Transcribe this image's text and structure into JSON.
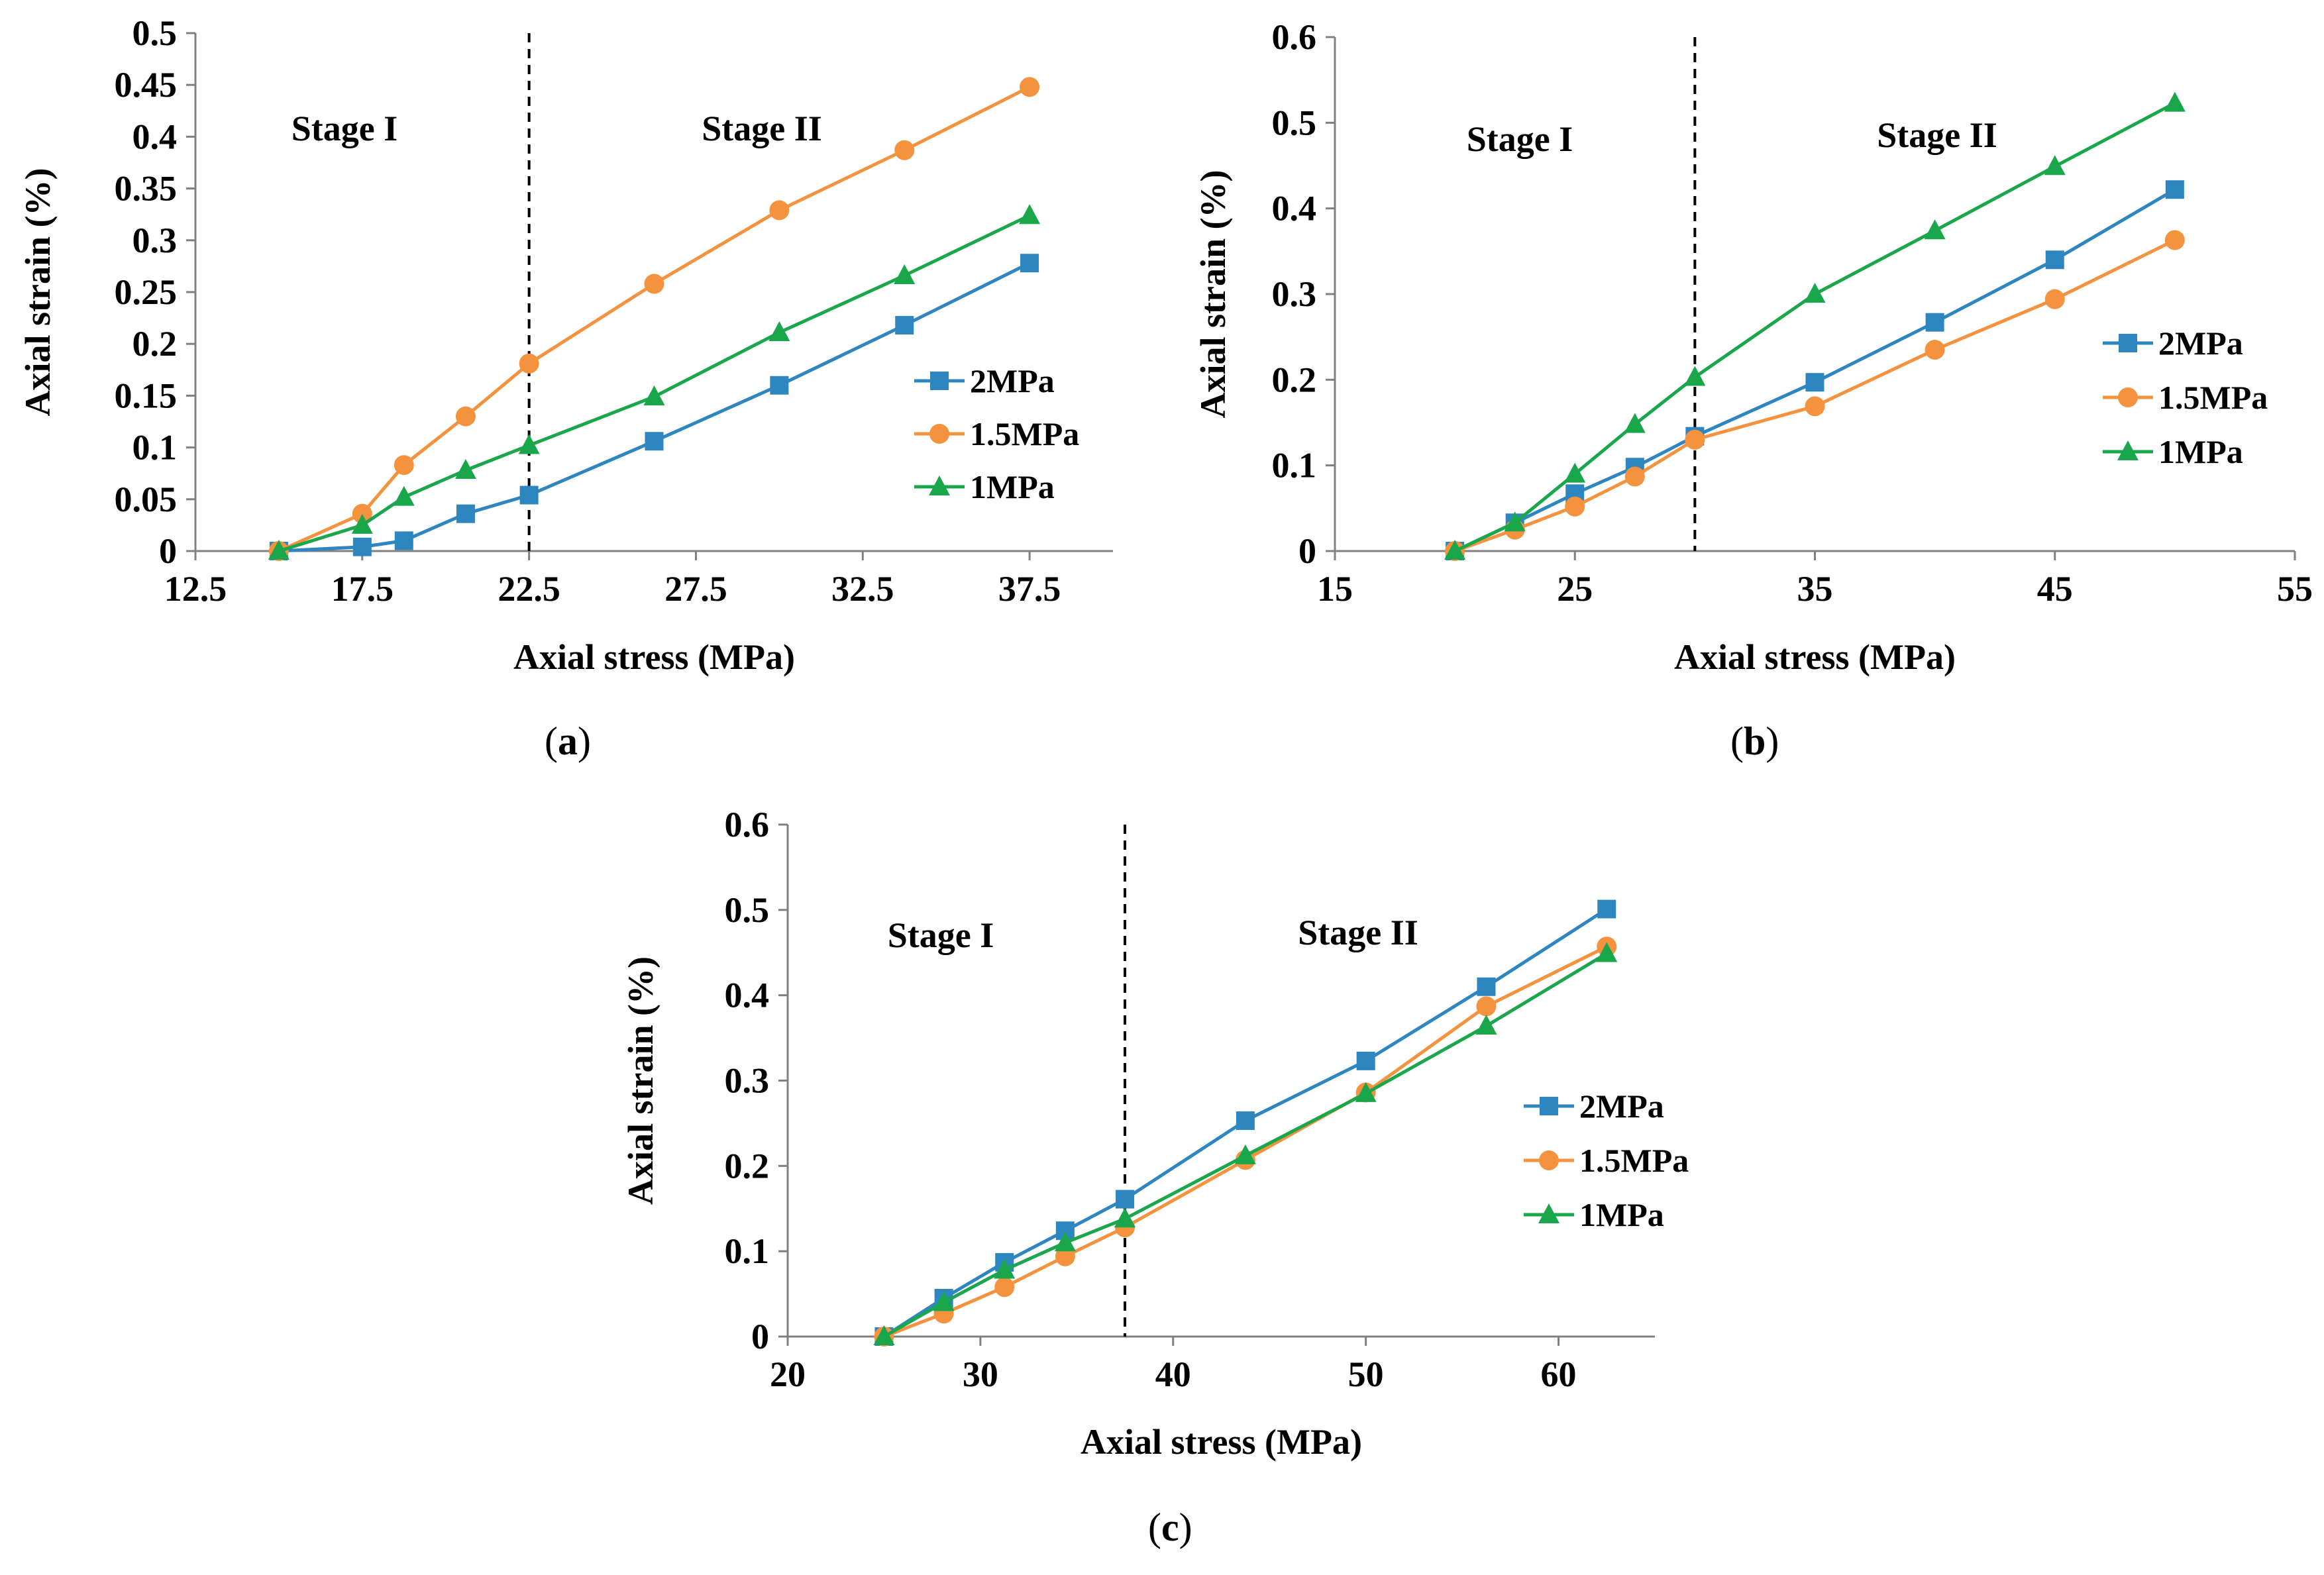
{
  "chart_data": [
    {
      "id": "a",
      "type": "line",
      "caption_letter": "a",
      "xlabel": "Axial stress (MPa)",
      "ylabel": "Axial strain (%)",
      "xlim": [
        12.5,
        40
      ],
      "ylim": [
        0,
        0.5
      ],
      "xticks": [
        12.5,
        17.5,
        22.5,
        27.5,
        32.5,
        37.5
      ],
      "xtick_labels": [
        "12.5",
        "17.5",
        "22.5",
        "27.5",
        "32.5",
        "37.5"
      ],
      "yticks": [
        0,
        0.05,
        0.1,
        0.15,
        0.2,
        0.25,
        0.3,
        0.35,
        0.4,
        0.45,
        0.5
      ],
      "ytick_labels": [
        "0",
        "0.05",
        "0.1",
        "0.15",
        "0.2",
        "0.25",
        "0.3",
        "0.35",
        "0.4",
        "0.45",
        "0.5"
      ],
      "divider_x": 22.5,
      "stage_labels": [
        "Stage I",
        "Stage II"
      ],
      "series": [
        {
          "name": "2MPa",
          "color": "#2e86c1",
          "marker": "square",
          "x": [
            15,
            17.5,
            18.75,
            20.6,
            22.5,
            26.25,
            30,
            33.75,
            37.5
          ],
          "y": [
            0,
            0.004,
            0.01,
            0.036,
            0.054,
            0.106,
            0.16,
            0.218,
            0.278
          ]
        },
        {
          "name": "1.5MPa",
          "color": "#f5923e",
          "marker": "circle",
          "x": [
            15,
            17.5,
            18.75,
            20.6,
            22.5,
            26.25,
            30,
            33.75,
            37.5
          ],
          "y": [
            0,
            0.036,
            0.083,
            0.13,
            0.181,
            0.258,
            0.329,
            0.387,
            0.448
          ]
        },
        {
          "name": "1MPa",
          "color": "#1aa64a",
          "marker": "triangle",
          "x": [
            15,
            17.5,
            18.75,
            20.6,
            22.5,
            26.25,
            30,
            33.75,
            37.5
          ],
          "y": [
            0,
            0.025,
            0.052,
            0.078,
            0.102,
            0.149,
            0.211,
            0.266,
            0.324
          ]
        }
      ]
    },
    {
      "id": "b",
      "type": "line",
      "caption_letter": "b",
      "xlabel": "Axial stress (MPa)",
      "ylabel": "Axial strain (%)",
      "xlim": [
        15,
        55
      ],
      "ylim": [
        0,
        0.6
      ],
      "xticks": [
        15,
        25,
        35,
        45,
        55
      ],
      "xtick_labels": [
        "15",
        "25",
        "35",
        "45",
        "55"
      ],
      "yticks": [
        0,
        0.1,
        0.2,
        0.3,
        0.4,
        0.5,
        0.6
      ],
      "ytick_labels": [
        "0",
        "0.1",
        "0.2",
        "0.3",
        "0.4",
        "0.5",
        "0.6"
      ],
      "divider_x": 30,
      "stage_labels": [
        "Stage I",
        "Stage II"
      ],
      "series": [
        {
          "name": "2MPa",
          "color": "#2e86c1",
          "marker": "square",
          "x": [
            20,
            22.5,
            25,
            27.5,
            30,
            35,
            40,
            45,
            50
          ],
          "y": [
            0,
            0.033,
            0.067,
            0.098,
            0.134,
            0.197,
            0.267,
            0.34,
            0.422
          ]
        },
        {
          "name": "1.5MPa",
          "color": "#f5923e",
          "marker": "circle",
          "x": [
            20,
            22.5,
            25,
            27.5,
            30,
            35,
            40,
            45,
            50
          ],
          "y": [
            0,
            0.025,
            0.052,
            0.087,
            0.13,
            0.169,
            0.235,
            0.294,
            0.363
          ]
        },
        {
          "name": "1MPa",
          "color": "#1aa64a",
          "marker": "triangle",
          "x": [
            20,
            22.5,
            25,
            27.5,
            30,
            35,
            40,
            45,
            50
          ],
          "y": [
            0,
            0.033,
            0.09,
            0.148,
            0.203,
            0.3,
            0.374,
            0.449,
            0.523
          ]
        }
      ]
    },
    {
      "id": "c",
      "type": "line",
      "caption_letter": "c",
      "xlabel": "Axial stress (MPa)",
      "ylabel": "Axial strain (%)",
      "xlim": [
        20,
        65
      ],
      "ylim": [
        0,
        0.6
      ],
      "xticks": [
        20,
        30,
        40,
        50,
        60
      ],
      "xtick_labels": [
        "20",
        "30",
        "40",
        "50",
        "60"
      ],
      "yticks": [
        0,
        0.1,
        0.2,
        0.3,
        0.4,
        0.5,
        0.6
      ],
      "ytick_labels": [
        "0",
        "0.1",
        "0.2",
        "0.3",
        "0.4",
        "0.5",
        "0.6"
      ],
      "divider_x": 37.5,
      "stage_labels": [
        "Stage I",
        "Stage II"
      ],
      "series": [
        {
          "name": "2MPa",
          "color": "#2e86c1",
          "marker": "square",
          "x": [
            25,
            28.1,
            31.25,
            34.4,
            37.5,
            43.75,
            50,
            56.25,
            62.5
          ],
          "y": [
            0,
            0.045,
            0.087,
            0.124,
            0.161,
            0.253,
            0.323,
            0.41,
            0.501
          ]
        },
        {
          "name": "1.5MPa",
          "color": "#f5923e",
          "marker": "circle",
          "x": [
            25,
            28.1,
            31.25,
            34.4,
            37.5,
            43.75,
            50,
            56.25,
            62.5
          ],
          "y": [
            0,
            0.027,
            0.058,
            0.094,
            0.128,
            0.207,
            0.286,
            0.387,
            0.457
          ]
        },
        {
          "name": "1MPa",
          "color": "#1aa64a",
          "marker": "triangle",
          "x": [
            25,
            28.1,
            31.25,
            34.4,
            37.5,
            43.75,
            50,
            56.25,
            62.5
          ],
          "y": [
            0,
            0.04,
            0.078,
            0.11,
            0.138,
            0.212,
            0.285,
            0.364,
            0.449
          ]
        }
      ]
    }
  ]
}
